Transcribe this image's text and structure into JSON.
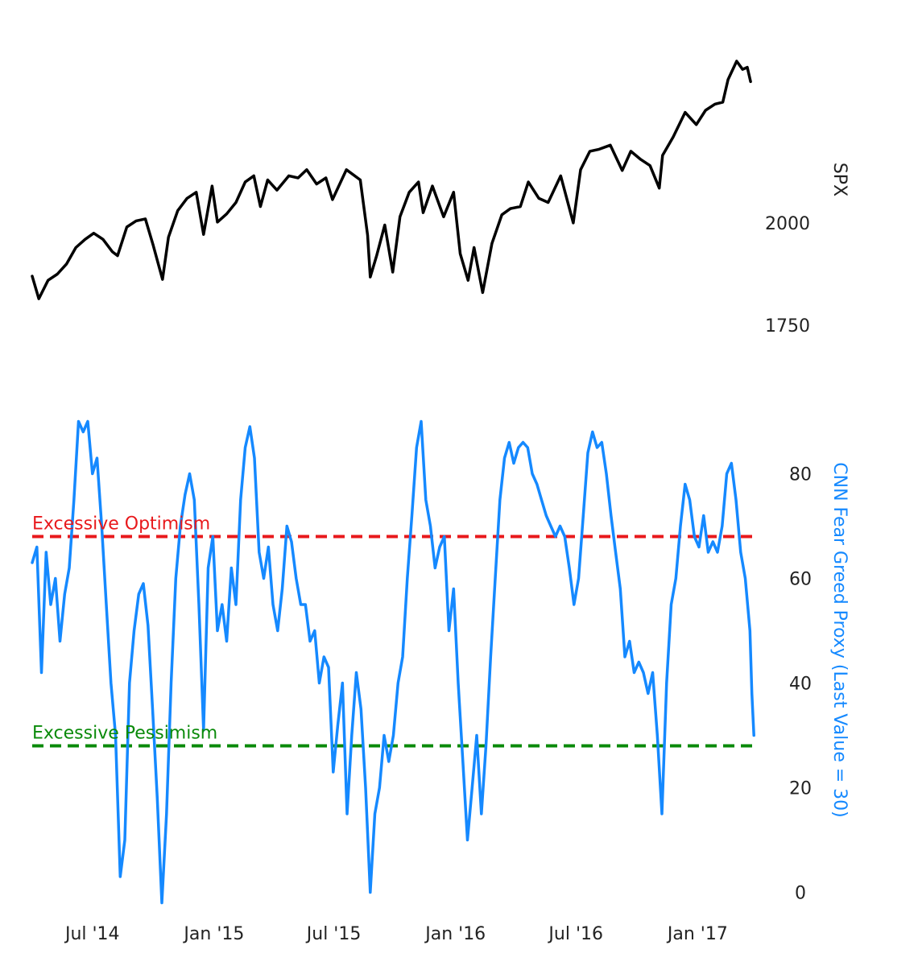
{
  "chart_data": [
    {
      "type": "line",
      "ylabel": "SPX",
      "ylim": [
        1650,
        2450
      ],
      "y_ticks": [
        "1750",
        "2000"
      ],
      "y_tick_values": [
        1750,
        2000
      ],
      "xlim": [
        "2014-04-01",
        "2017-03-28"
      ],
      "grid": false,
      "series": [
        {
          "color": "#000000",
          "points": [
            [
              "2014-04-01",
              1870
            ],
            [
              "2014-04-11",
              1815
            ],
            [
              "2014-04-25",
              1860
            ],
            [
              "2014-05-09",
              1875
            ],
            [
              "2014-05-23",
              1900
            ],
            [
              "2014-06-06",
              1940
            ],
            [
              "2014-06-20",
              1960
            ],
            [
              "2014-07-03",
              1975
            ],
            [
              "2014-07-17",
              1960
            ],
            [
              "2014-07-31",
              1930
            ],
            [
              "2014-08-08",
              1920
            ],
            [
              "2014-08-22",
              1990
            ],
            [
              "2014-09-05",
              2005
            ],
            [
              "2014-09-19",
              2010
            ],
            [
              "2014-10-01",
              1945
            ],
            [
              "2014-10-15",
              1862
            ],
            [
              "2014-10-24",
              1965
            ],
            [
              "2014-11-07",
              2030
            ],
            [
              "2014-11-21",
              2060
            ],
            [
              "2014-12-05",
              2075
            ],
            [
              "2014-12-16",
              1972
            ],
            [
              "2014-12-29",
              2090
            ],
            [
              "2015-01-06",
              2002
            ],
            [
              "2015-01-20",
              2022
            ],
            [
              "2015-02-03",
              2050
            ],
            [
              "2015-02-17",
              2100
            ],
            [
              "2015-03-02",
              2115
            ],
            [
              "2015-03-12",
              2040
            ],
            [
              "2015-03-23",
              2105
            ],
            [
              "2015-04-06",
              2080
            ],
            [
              "2015-04-24",
              2115
            ],
            [
              "2015-05-08",
              2110
            ],
            [
              "2015-05-21",
              2130
            ],
            [
              "2015-06-05",
              2095
            ],
            [
              "2015-06-19",
              2110
            ],
            [
              "2015-06-29",
              2057
            ],
            [
              "2015-07-20",
              2130
            ],
            [
              "2015-08-10",
              2105
            ],
            [
              "2015-08-21",
              1970
            ],
            [
              "2015-08-25",
              1868
            ],
            [
              "2015-09-04",
              1922
            ],
            [
              "2015-09-16",
              1995
            ],
            [
              "2015-09-28",
              1880
            ],
            [
              "2015-10-09",
              2015
            ],
            [
              "2015-10-23",
              2075
            ],
            [
              "2015-11-06",
              2100
            ],
            [
              "2015-11-13",
              2025
            ],
            [
              "2015-11-27",
              2090
            ],
            [
              "2015-12-14",
              2015
            ],
            [
              "2015-12-29",
              2075
            ],
            [
              "2016-01-08",
              1925
            ],
            [
              "2016-01-20",
              1860
            ],
            [
              "2016-01-29",
              1940
            ],
            [
              "2016-02-11",
              1830
            ],
            [
              "2016-02-25",
              1950
            ],
            [
              "2016-03-11",
              2020
            ],
            [
              "2016-03-24",
              2035
            ],
            [
              "2016-04-08",
              2040
            ],
            [
              "2016-04-20",
              2100
            ],
            [
              "2016-05-06",
              2060
            ],
            [
              "2016-05-20",
              2050
            ],
            [
              "2016-06-08",
              2115
            ],
            [
              "2016-06-27",
              2000
            ],
            [
              "2016-07-08",
              2130
            ],
            [
              "2016-07-22",
              2175
            ],
            [
              "2016-08-05",
              2180
            ],
            [
              "2016-08-22",
              2190
            ],
            [
              "2016-09-09",
              2128
            ],
            [
              "2016-09-22",
              2175
            ],
            [
              "2016-10-07",
              2155
            ],
            [
              "2016-10-21",
              2140
            ],
            [
              "2016-11-04",
              2085
            ],
            [
              "2016-11-09",
              2165
            ],
            [
              "2016-11-25",
              2210
            ],
            [
              "2016-12-13",
              2270
            ],
            [
              "2016-12-30",
              2240
            ],
            [
              "2017-01-13",
              2275
            ],
            [
              "2017-01-27",
              2290
            ],
            [
              "2017-02-08",
              2295
            ],
            [
              "2017-02-16",
              2350
            ],
            [
              "2017-03-01",
              2395
            ],
            [
              "2017-03-10",
              2375
            ],
            [
              "2017-03-17",
              2380
            ],
            [
              "2017-03-22",
              2345
            ]
          ]
        }
      ]
    },
    {
      "type": "line",
      "ylabel": "CNN Fear Greed Proxy (Last Value = 30)",
      "ylim": [
        -3,
        93
      ],
      "y_ticks": [
        "0",
        "20",
        "40",
        "60",
        "80"
      ],
      "y_tick_values": [
        0,
        20,
        40,
        60,
        80
      ],
      "x_ticks": [
        "Jul '14",
        "Jan '15",
        "Jul '15",
        "Jan '16",
        "Jul '16",
        "Jan '17"
      ],
      "x_tick_dates": [
        "2014-07-01",
        "2015-01-01",
        "2015-07-01",
        "2016-01-01",
        "2016-07-01",
        "2017-01-01"
      ],
      "xlim": [
        "2014-04-01",
        "2017-03-28"
      ],
      "grid": false,
      "series": [
        {
          "color": "#1589FF",
          "points": [
            [
              "2014-04-01",
              63
            ],
            [
              "2014-04-08",
              66
            ],
            [
              "2014-04-15",
              42
            ],
            [
              "2014-04-22",
              65
            ],
            [
              "2014-04-29",
              55
            ],
            [
              "2014-05-06",
              60
            ],
            [
              "2014-05-13",
              48
            ],
            [
              "2014-05-20",
              57
            ],
            [
              "2014-05-27",
              62
            ],
            [
              "2014-06-03",
              75
            ],
            [
              "2014-06-10",
              90
            ],
            [
              "2014-06-17",
              88
            ],
            [
              "2014-06-24",
              90
            ],
            [
              "2014-07-01",
              80
            ],
            [
              "2014-07-08",
              83
            ],
            [
              "2014-07-15",
              70
            ],
            [
              "2014-07-22",
              55
            ],
            [
              "2014-07-29",
              40
            ],
            [
              "2014-08-05",
              30
            ],
            [
              "2014-08-12",
              3
            ],
            [
              "2014-08-19",
              10
            ],
            [
              "2014-08-26",
              40
            ],
            [
              "2014-09-02",
              50
            ],
            [
              "2014-09-09",
              57
            ],
            [
              "2014-09-16",
              59
            ],
            [
              "2014-09-23",
              51
            ],
            [
              "2014-09-30",
              35
            ],
            [
              "2014-10-07",
              18
            ],
            [
              "2014-10-14",
              -2
            ],
            [
              "2014-10-21",
              15
            ],
            [
              "2014-10-28",
              40
            ],
            [
              "2014-11-04",
              60
            ],
            [
              "2014-11-11",
              70
            ],
            [
              "2014-11-18",
              76
            ],
            [
              "2014-11-25",
              80
            ],
            [
              "2014-12-02",
              75
            ],
            [
              "2014-12-09",
              55
            ],
            [
              "2014-12-16",
              31
            ],
            [
              "2014-12-23",
              62
            ],
            [
              "2014-12-30",
              68
            ],
            [
              "2015-01-06",
              50
            ],
            [
              "2015-01-13",
              55
            ],
            [
              "2015-01-20",
              48
            ],
            [
              "2015-01-27",
              62
            ],
            [
              "2015-02-03",
              55
            ],
            [
              "2015-02-10",
              75
            ],
            [
              "2015-02-17",
              85
            ],
            [
              "2015-02-24",
              89
            ],
            [
              "2015-03-03",
              83
            ],
            [
              "2015-03-10",
              65
            ],
            [
              "2015-03-17",
              60
            ],
            [
              "2015-03-24",
              66
            ],
            [
              "2015-03-31",
              55
            ],
            [
              "2015-04-07",
              50
            ],
            [
              "2015-04-14",
              58
            ],
            [
              "2015-04-21",
              70
            ],
            [
              "2015-04-28",
              67
            ],
            [
              "2015-05-05",
              60
            ],
            [
              "2015-05-12",
              55
            ],
            [
              "2015-05-19",
              55
            ],
            [
              "2015-05-26",
              48
            ],
            [
              "2015-06-02",
              50
            ],
            [
              "2015-06-09",
              40
            ],
            [
              "2015-06-16",
              45
            ],
            [
              "2015-06-23",
              43
            ],
            [
              "2015-06-30",
              23
            ],
            [
              "2015-07-07",
              32
            ],
            [
              "2015-07-14",
              40
            ],
            [
              "2015-07-21",
              15
            ],
            [
              "2015-07-28",
              30
            ],
            [
              "2015-08-04",
              42
            ],
            [
              "2015-08-11",
              35
            ],
            [
              "2015-08-18",
              20
            ],
            [
              "2015-08-25",
              0
            ],
            [
              "2015-09-01",
              15
            ],
            [
              "2015-09-08",
              20
            ],
            [
              "2015-09-15",
              30
            ],
            [
              "2015-09-22",
              25
            ],
            [
              "2015-09-29",
              30
            ],
            [
              "2015-10-06",
              40
            ],
            [
              "2015-10-13",
              45
            ],
            [
              "2015-10-20",
              60
            ],
            [
              "2015-10-27",
              72
            ],
            [
              "2015-11-03",
              85
            ],
            [
              "2015-11-10",
              90
            ],
            [
              "2015-11-17",
              75
            ],
            [
              "2015-11-24",
              70
            ],
            [
              "2015-12-01",
              62
            ],
            [
              "2015-12-08",
              66
            ],
            [
              "2015-12-15",
              68
            ],
            [
              "2015-12-22",
              50
            ],
            [
              "2015-12-29",
              58
            ],
            [
              "2016-01-05",
              40
            ],
            [
              "2016-01-12",
              25
            ],
            [
              "2016-01-19",
              10
            ],
            [
              "2016-01-26",
              20
            ],
            [
              "2016-02-02",
              30
            ],
            [
              "2016-02-09",
              15
            ],
            [
              "2016-02-16",
              28
            ],
            [
              "2016-02-23",
              45
            ],
            [
              "2016-03-01",
              60
            ],
            [
              "2016-03-08",
              75
            ],
            [
              "2016-03-15",
              83
            ],
            [
              "2016-03-22",
              86
            ],
            [
              "2016-03-29",
              82
            ],
            [
              "2016-04-05",
              85
            ],
            [
              "2016-04-12",
              86
            ],
            [
              "2016-04-19",
              85
            ],
            [
              "2016-04-26",
              80
            ],
            [
              "2016-05-03",
              78
            ],
            [
              "2016-05-10",
              75
            ],
            [
              "2016-05-17",
              72
            ],
            [
              "2016-05-24",
              70
            ],
            [
              "2016-05-31",
              68
            ],
            [
              "2016-06-07",
              70
            ],
            [
              "2016-06-14",
              68
            ],
            [
              "2016-06-21",
              62
            ],
            [
              "2016-06-28",
              55
            ],
            [
              "2016-07-05",
              60
            ],
            [
              "2016-07-12",
              72
            ],
            [
              "2016-07-19",
              84
            ],
            [
              "2016-07-26",
              88
            ],
            [
              "2016-08-02",
              85
            ],
            [
              "2016-08-09",
              86
            ],
            [
              "2016-08-16",
              80
            ],
            [
              "2016-08-23",
              72
            ],
            [
              "2016-08-30",
              65
            ],
            [
              "2016-09-06",
              58
            ],
            [
              "2016-09-13",
              45
            ],
            [
              "2016-09-20",
              48
            ],
            [
              "2016-09-27",
              42
            ],
            [
              "2016-10-04",
              44
            ],
            [
              "2016-10-11",
              42
            ],
            [
              "2016-10-18",
              38
            ],
            [
              "2016-10-25",
              42
            ],
            [
              "2016-11-01",
              30
            ],
            [
              "2016-11-08",
              15
            ],
            [
              "2016-11-15",
              40
            ],
            [
              "2016-11-22",
              55
            ],
            [
              "2016-11-29",
              60
            ],
            [
              "2016-12-06",
              70
            ],
            [
              "2016-12-13",
              78
            ],
            [
              "2016-12-20",
              75
            ],
            [
              "2016-12-27",
              68
            ],
            [
              "2017-01-03",
              66
            ],
            [
              "2017-01-10",
              72
            ],
            [
              "2017-01-17",
              65
            ],
            [
              "2017-01-24",
              67
            ],
            [
              "2017-01-31",
              65
            ],
            [
              "2017-02-07",
              70
            ],
            [
              "2017-02-14",
              80
            ],
            [
              "2017-02-21",
              82
            ],
            [
              "2017-02-28",
              75
            ],
            [
              "2017-03-07",
              65
            ],
            [
              "2017-03-14",
              60
            ],
            [
              "2017-03-21",
              50
            ],
            [
              "2017-03-24",
              38
            ],
            [
              "2017-03-27",
              30
            ]
          ]
        }
      ],
      "reference_lines": [
        {
          "label": "Excessive Optimism",
          "value": 68,
          "color": "#E8191C"
        },
        {
          "label": "Excessive Pessimism",
          "value": 28,
          "color": "#0A8A0A"
        }
      ]
    }
  ]
}
